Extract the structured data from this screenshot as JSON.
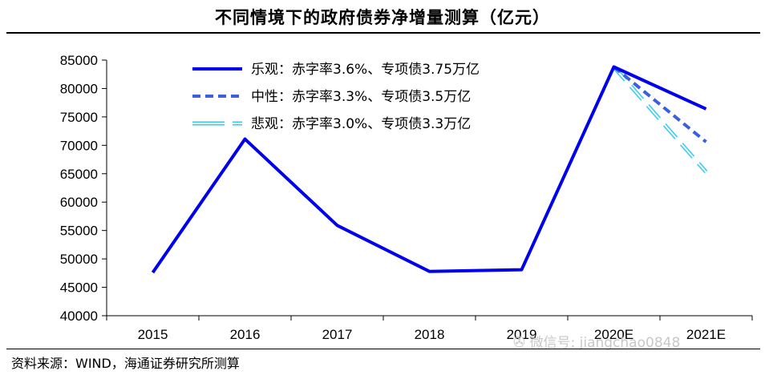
{
  "title": "不同情境下的政府债券净增量测算（亿元）",
  "source": "资料来源：WIND，海通证券研究所测算",
  "watermark": "微信号: jiangchao0848",
  "colors": {
    "optimistic": "#0000ee",
    "neutral": "#3b5fe0",
    "pessimistic": "#33ccee",
    "axis": "#000000"
  },
  "chart_data": {
    "type": "line",
    "title": "不同情境下的政府债券净增量测算（亿元）",
    "xlabel": "",
    "ylabel": "",
    "categories": [
      "2015",
      "2016",
      "2017",
      "2018",
      "2019",
      "2020E",
      "2021E"
    ],
    "ylim": [
      40000,
      85000
    ],
    "yticks": [
      40000,
      45000,
      50000,
      55000,
      60000,
      65000,
      70000,
      75000,
      80000,
      85000
    ],
    "legend_position": "top-right",
    "series": [
      {
        "name": "乐观：赤字率3.6%、专项债3.75万亿",
        "style": "solid",
        "color": "#0000ee",
        "values": [
          47600,
          71100,
          55900,
          47800,
          48100,
          83800,
          76400
        ]
      },
      {
        "name": "中性：赤字率3.3%、专项债3.5万亿",
        "style": "dashed",
        "color": "#3b5fe0",
        "values": [
          null,
          null,
          null,
          null,
          null,
          83800,
          70600
        ]
      },
      {
        "name": "悲观：赤字率3.0%、专项债3.3万亿",
        "style": "long-dash-hollow",
        "color": "#33ccee",
        "values": [
          null,
          null,
          null,
          null,
          null,
          83800,
          65300
        ]
      }
    ]
  }
}
